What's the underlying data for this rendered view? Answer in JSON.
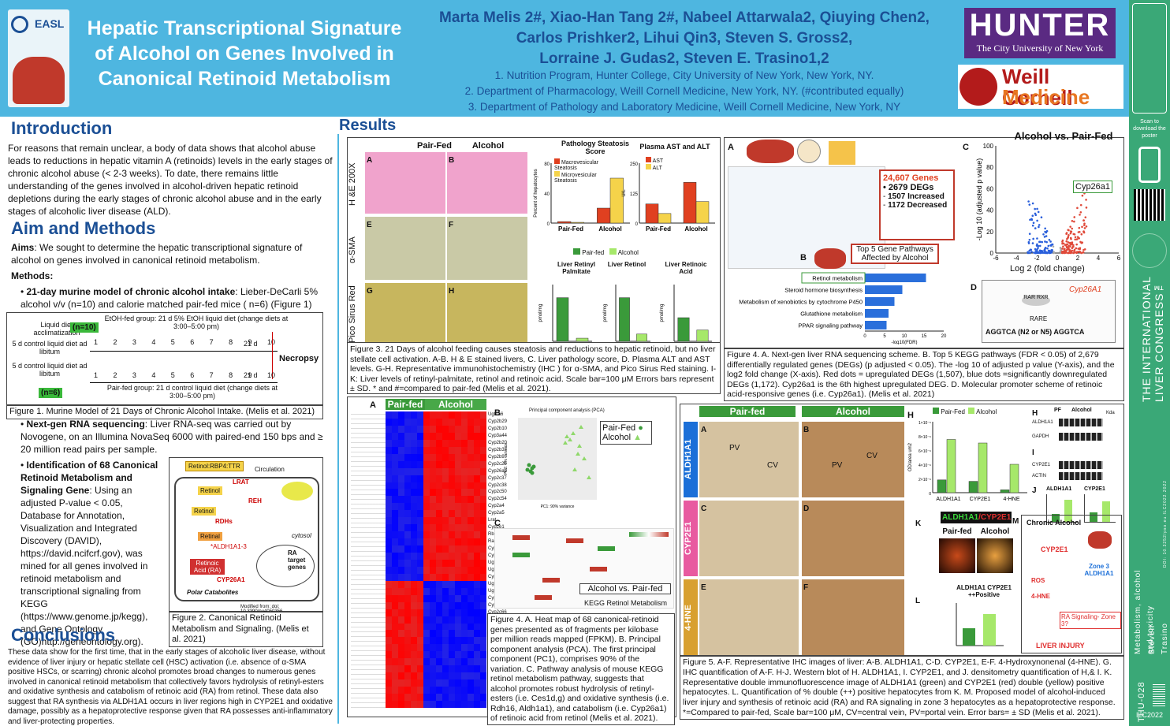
{
  "header": {
    "title": "Hepatic Transcriptional Signature of Alcohol on Genes Involved in Canonical Retinoid Metabolism",
    "authors": [
      "Marta Melis 2#, Xiao-Han Tang 2#, Nabeel Attarwala2, Qiuying Chen2,",
      "Carlos Prishker2, Lihui Qin3, Steven S. Gross2,",
      "Lorraine J. Gudas2, Steven E. Trasino1,2"
    ],
    "affiliations": [
      "1. Nutrition Program, Hunter College, City University of New York, New York, NY.",
      "2. Department of Pharmacology, Weill Cornell Medicine, New York, NY. (#contributed equally)",
      "3. Department of Pathology and Laboratory Medicine, Weill Cornell Medicine, New York, NY"
    ],
    "easl": "EASL",
    "hunter": "HUNTER",
    "hunter_sub": "The City University of New York",
    "weill1": "Weill Cornell",
    "weill2": "Medicine"
  },
  "sidebar": {
    "scan": "Scan to download the poster",
    "congress": "THE INTERNATIONAL LIVER CONGRESS™",
    "topic": "Metabolism, alcohol and toxicity",
    "author": "Steven Trasino",
    "code": "THU-028",
    "ilc": "ILC2022",
    "doi": "DOI: 10.3252/pso.eu.ILC2022.2022"
  },
  "intro": {
    "heading": "Introduction",
    "text": "For reasons that remain unclear, a body of data shows that alcohol abuse leads to reductions in hepatic vitamin A (retinoids) levels in the early stages of chronic alcohol abuse (< 2-3 weeks). To date, there remains little understanding of the genes involved in alcohol-driven hepatic retinoid depletions during the early stages of chronic alcohol abuse and in the early stages of alcoholic liver disease (ALD)."
  },
  "aims": {
    "heading": "Aim and Methods",
    "aims_label": "Aims",
    "aims_text": ": We sought to determine the hepatic transcriptional signature of alcohol on genes involved in canonical retinoid metabolism.",
    "methods_label": "Methods:",
    "m1_bold": "21-day murine model of chronic alcohol intake",
    "m1": ": Lieber-DeCarli 5% alcohol v/v (n=10) and calorie matched pair-fed mice ( n=6) (Figure 1)",
    "m2_bold": "Next-gen RNA sequencing",
    "m2": ": Liver RNA-seq was carried out by Novogene, on an Illumina NovaSeq 6000 with paired-end 150 bps and ≥ 20 million read pairs per sample.",
    "m3_bold": "Identification of 68 Canonical Retinoid Metabolism and Signaling Gene",
    "m3": ": Using an adjusted P-value < 0.05, Database for Annotation, Visualization and Integrated Discovery (DAVID), https://david.ncifcrf.gov), was mined for all genes involved in retinoid metabolism and transcriptional signaling from KEGG (https://www.genome.jp/kegg), and Gene Ontology (GO)http://geneontology.org)."
  },
  "fig1": {
    "caption": "Figure 1. Murine Model of 21 Days of Chronic Alcohol Intake. (Melis et al. 2021)",
    "liquid": "Liquid diet acclimatization",
    "n10": "(n=10)",
    "n6": "(n=6)",
    "etoh": "EtOH-fed group: 21 d 5% EtOH liquid diet (change diets at 3:00–5:00 pm)",
    "pf": "Pair-fed group: 21 d control liquid diet (change diets at 3:00–5:00 pm)",
    "ctl": "5 d control liquid diet ad libitum",
    "necropsy": "Necropsy",
    "d21": "21 d",
    "days": [
      "1",
      "2",
      "3",
      "4",
      "5",
      "6",
      "7",
      "8",
      "9",
      "10"
    ]
  },
  "fig2": {
    "caption": "Figure 2. Canonical Retinoid Metabolism and Signaling. (Melis et al. 2021)",
    "top": "Retinol:RBP4:TTR",
    "circ": "Circulation",
    "labels": [
      "Retinol",
      "CRBP",
      "LRAT",
      "REH",
      "Retinal",
      "RDHs",
      "Retinoic Acid (RA)",
      "*ALDH1A1-3",
      "CYP26A1",
      "Polar Catabolites",
      "cytosol",
      "nucleus",
      "RA target genes",
      "lipid droplets",
      "retinyl ester"
    ],
    "mod": "Modified from: doi: 10.3390/nu4050356"
  },
  "concl": {
    "heading": "Conclusions",
    "text": "These data show for the first time, that in the early stages of alcoholic liver disease, without evidence of liver injury or hepatic stellate cell (HSC) activation (i.e. absence of α-SMA positive HSCs, or scarring) chronic alcohol promotes broad changes to numerous genes involved in canonical retinoid metabolism that collectively favors hydrolysis of retinyl-esters and oxidative synthesis and catabolism of retinoic acid (RA) from retinol. These data also suggest that RA synthesis via ALDH1A1 occurs in liver regions high in CYP2E1 and oxidative damage, possibly as a hepatoprotective response given that RA possesses anti-inflammatory and liver-protecting properties."
  },
  "results": {
    "heading": "Results"
  },
  "fig3": {
    "pairfed": "Pair-Fed",
    "alcohol": "Alcohol",
    "rows": [
      "H &E 200X",
      "α-SMA",
      "Pico Sirus Red"
    ],
    "panels": [
      "A",
      "B",
      "E",
      "F",
      "G",
      "H"
    ],
    "c_title": "Pathology Steatosis Score",
    "d_title": "Plasma AST and ALT",
    "macro": "Macrovesicular Steatosis",
    "micro": "Microvesicular Steatosis",
    "ast": "AST",
    "alt": "ALT",
    "i_title": "Liver Retinyl Palmitate",
    "j_title": "Liver Retinol",
    "k_title": "Liver Retinoic Acid",
    "leg_pf": "Pair-fed",
    "leg_al": "Alcohol",
    "caption": "Figure 3. 21 Days of alcohol feeding causes steatosis and reductions to hepatic retinoid, but no liver stellate cell activation. A-B. H & E stained livers, C. Liver pathology score, D. Plasma ALT and AST levels. G-H. Representative immunohistochemistry (IHC ) for α-SMA, and Pico Sirus Red staining. I-K: Liver levels of retinyl-palmitate, retinol and retinoic acid. Scale bar=100 μM Errors bars represent ± SD. * and #=compared to pair-fed (Melis et al. 2021)."
  },
  "fig4a": {
    "genes_title": "24,607 Genes",
    "degs": "2679 DEGs",
    "inc": "1507 Increased",
    "dec": "1172 Decreased",
    "top5": "Top 5 Gene Pathways Affected by Alcohol",
    "volcano_title": "Alcohol vs. Pair-Fed",
    "cyp": "Cyp26a1",
    "xlab": "Log 2 (fold change)",
    "ylab": "-Log 10 (adjusted p value)",
    "fdr": "-log10(FDR)",
    "rare": "AGGTCA (N2 or N5) AGGTCA",
    "rare_lbl": "RARE",
    "promoter_gene": "Cyp26A1",
    "pathways": [
      "Retinol metabolism",
      "Steroid hormone biosynthesis",
      "Metabolism of xenobiotics by cytochrome P450",
      "Glutathione metabolism",
      "PPAR signaling pathway"
    ],
    "caption": "Figure 4. A. Next-gen liver RNA sequencing scheme. B. Top 5 KEGG pathways (FDR < 0.05) of 2,679 differentially regulated genes (DEGs) (p adjusted < 0.05). The -log 10 of adjusted p value (Y-axis), and the log2 fold change (X-axis). Red dots = upregulated DEGs (1,507), blue dots =significantly downregulated DEGs (1,172). Cyp26a1 is the 6th highest upregulated DEG. D. Molecular promoter scheme of retinoic acid-responsive genes (i.e. Cyp26a1). (Melis et al. 2021)"
  },
  "fig4b": {
    "pf": "Pair-fed",
    "alc": "Alcohol",
    "pca_title": "Principal component analysis (PCA)",
    "pc1": "PC1: 90% variance",
    "pc2": "PC2: 7% variance",
    "leg_pf": "Pair-Fed",
    "leg_al": "Alcohol",
    "kegg_lbl": "Alcohol vs. Pair-fed",
    "kegg_title": "KEGG Retinol Metabolism",
    "genes": [
      "Ugt1a6",
      "Cyp2b29",
      "Cyp2b10",
      "Cyp3a44",
      "Cyp2b20",
      "Cyp2b37",
      "Cyp2b9",
      "Cyp2c29",
      "Cyp26a1",
      "Cyp2c37",
      "Cyp2c38",
      "Cyp2c50",
      "Cyp2c54",
      "Cyp2a4",
      "Cyp2a5",
      "Lrat",
      "Cyp2e1",
      "Rbp1",
      "Rarg",
      "Cyp1a1",
      "Cyp2c55",
      "Ugt2b35",
      "Ugt1a1",
      "Cyp2a12",
      "Ugt2b34",
      "Ugt1a9",
      "Cyp4a10",
      "Cyp2c39",
      "Cyp2c66",
      "Ugt2b36",
      "Cyp2c70",
      "Aldh1a1",
      "Rdh9",
      "Rdh16",
      "Aldh1a7",
      "Adh4",
      "Rdh10",
      "Dhrs9",
      "Rbp4",
      "Ttr",
      "Stra6",
      "Crabp2"
    ],
    "caption": "Figure 4. A. Heat map of 68 canonical-retinoid genes presented as of fragments per kilobase per million reads mapped (FPKM). B. Principal component analysis (PCA). The first principal component (PC1), comprises 90% of the variation. C. Pathway analysis of mouse KEGG retinol metabolism pathway, suggests that alcohol promotes robust hydrolysis of retinyl-esters (i.e. Ces1d,g) and oxidative synthesis (i.e. Rdh16, Aldh1a1), and catabolism (i.e. Cyp26a1) of retinoic acid from retinol (Melis et al. 2021)."
  },
  "fig5": {
    "pairfed": "Pair-fed",
    "alcohol": "Alcohol",
    "rows": [
      "ALDH1A1",
      "CYP2E1",
      "4-HNE"
    ],
    "pv": "PV",
    "cv": "CV",
    "g_ylab": "OD/area um2",
    "g_cats": [
      "ALDH1A1",
      "CYP2E1",
      "4-HNE"
    ],
    "leg_pf": "Pair-Fed",
    "leg_al": "Alcohol",
    "k_title": "ALDH1A1/CYP2E1",
    "l_title": "ALDH1A1 CYP2E1 ++Positive",
    "m_title": "Chronic Alcohol",
    "m_cyp": "CYP2E1",
    "m_zone": "Zone 3 ALDH1A1",
    "m_ros": "ROS",
    "m_hne": "4-HNE",
    "m_ra": "RA Signaling- Zone 3?",
    "m_injury": "LIVER INJURY",
    "h_lbl": "H",
    "i_lbl": "I",
    "j_lbl": "J",
    "wb1": "ALDH1A1",
    "wb2": "GAPDH",
    "wb3": "CYP2E1",
    "wb4": "ACTIN",
    "pf": "PF",
    "al": "Alcohol",
    "kda": "Kda",
    "caption": "Figure 5. A-F. Representative IHC images of liver: A-B. ALDH1A1, C-D. CYP2E1, E-F. 4-Hydroxynonenal (4-HNE). G. IHC quantification of A-F. H-J. Western blot of H. ALDH1A1, I. CYP2E1, and J. densitometry quantification of H,& I. K. Representative double immunofluorescence image of ALDH1A1 (green) and CYP2E1 (red) double (yellow) positive hepatocytes. L. Quantification of % double (++) positive hepatocytes from K. M. Proposed model of alcohol-induced liver injury and synthesis of retinoic acid (RA) and RA signaling in zone 3 hepatocytes as a hepatoprotective response. *=Compared to pair-fed, Scale bar=100 μM, CV=central vein, PV=portal vein. Error bars= ± SD (Melis et al. 2021)."
  },
  "chart_data": [
    {
      "type": "bar",
      "title": "Pathology Steatosis Score",
      "ylabel": "Percent of hepatocytes",
      "categories": [
        "Pair-Fed",
        "Alcohol"
      ],
      "series": [
        {
          "name": "Macrovesicular Steatosis",
          "values": [
            2,
            20
          ]
        },
        {
          "name": "Microvesicular Steatosis",
          "values": [
            1,
            60
          ]
        }
      ],
      "ylim": [
        0,
        80
      ]
    },
    {
      "type": "bar",
      "title": "Plasma AST and ALT",
      "ylabel": "U/L",
      "categories": [
        "Pair-Fed",
        "Alcohol"
      ],
      "series": [
        {
          "name": "AST",
          "values": [
            80,
            170
          ]
        },
        {
          "name": "ALT",
          "values": [
            40,
            90
          ]
        }
      ],
      "ylim": [
        0,
        250
      ]
    },
    {
      "type": "bar",
      "title": "Liver Retinyl Palmitate",
      "ylabel": "pmol/mg",
      "categories": [
        "Pair-fed",
        "Alcohol"
      ],
      "values": [
        140,
        10
      ]
    },
    {
      "type": "bar",
      "title": "Liver Retinol",
      "ylabel": "pmol/mg",
      "categories": [
        "Pair-fed",
        "Alcohol"
      ],
      "values": [
        3,
        0.5
      ]
    },
    {
      "type": "bar",
      "title": "Liver Retinoic Acid",
      "ylabel": "pmol/mg",
      "categories": [
        "Pair-fed",
        "Alcohol"
      ],
      "values": [
        0.25,
        0.12
      ],
      "ylim": [
        0,
        0.6
      ]
    },
    {
      "type": "bar",
      "title": "Top 5 KEGG pathways",
      "xlabel": "-log10(FDR)",
      "categories": [
        "Retinol metabolism",
        "Steroid hormone biosynthesis",
        "Metabolism of xenobiotics by cytochrome P450",
        "Glutathione metabolism",
        "PPAR signaling pathway"
      ],
      "values": [
        15.5,
        9.5,
        7.5,
        6,
        5.5
      ],
      "xlim": [
        0,
        20
      ]
    },
    {
      "type": "bar",
      "title": "",
      "ylabel": "OD/area um2",
      "categories": [
        "ALDH1A1",
        "CYP2E1",
        "4-HNE"
      ],
      "series": [
        {
          "name": "Pair-Fed",
          "values": [
            1.8e-06,
            1.6e-06,
            4e-07
          ]
        },
        {
          "name": "Alcohol",
          "values": [
            7.5e-06,
            7e-06,
            4e-06
          ]
        }
      ],
      "ylim": [
        0,
        1e-05
      ]
    }
  ]
}
